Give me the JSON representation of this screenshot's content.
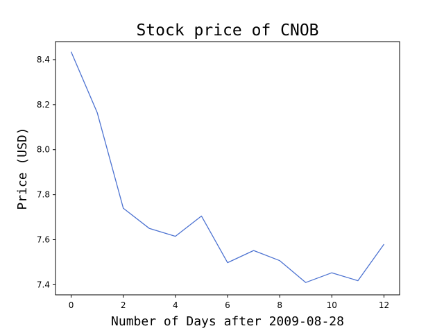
{
  "chart_data": {
    "type": "line",
    "title": "Stock price of CNOB",
    "xlabel": "Number of Days after 2009-08-28",
    "ylabel": "Price (USD)",
    "xlim": [
      -0.6,
      12.6
    ],
    "ylim": [
      7.355,
      8.48
    ],
    "x_ticks": [
      0,
      2,
      4,
      6,
      8,
      10,
      12
    ],
    "y_ticks": [
      7.4,
      7.6,
      7.8,
      8.0,
      8.2,
      8.4
    ],
    "y_tick_labels": [
      "7.4",
      "7.6",
      "7.8",
      "8.0",
      "8.2",
      "8.4"
    ],
    "grid": false,
    "legend": "none",
    "series": [
      {
        "color": "#4c72d1",
        "x": [
          0,
          1,
          2,
          3,
          4,
          5,
          6,
          7,
          8,
          9,
          10,
          11,
          12
        ],
        "y": [
          8.435,
          8.165,
          7.74,
          7.65,
          7.615,
          7.705,
          7.498,
          7.552,
          7.507,
          7.41,
          7.453,
          7.418,
          7.58
        ]
      }
    ]
  }
}
